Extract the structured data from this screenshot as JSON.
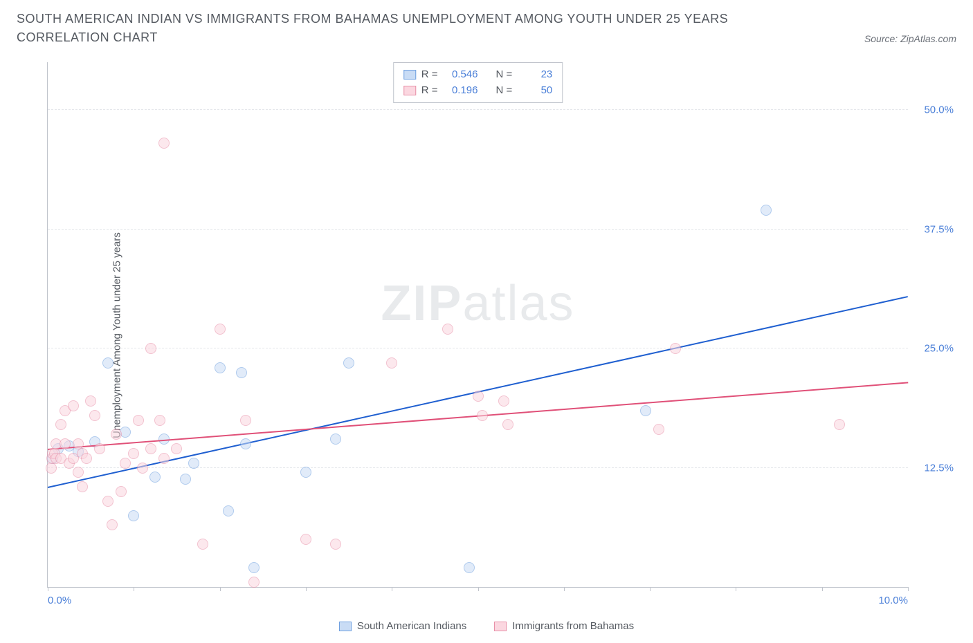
{
  "title": "SOUTH AMERICAN INDIAN VS IMMIGRANTS FROM BAHAMAS UNEMPLOYMENT AMONG YOUTH UNDER 25 YEARS CORRELATION CHART",
  "source_label": "Source: ZipAtlas.com",
  "y_axis_label": "Unemployment Among Youth under 25 years",
  "watermark_bold": "ZIP",
  "watermark_light": "atlas",
  "chart": {
    "type": "scatter",
    "xlim": [
      0,
      10
    ],
    "ylim": [
      0,
      55
    ],
    "x_ticks": [
      0,
      1,
      2,
      3,
      4,
      5,
      6,
      7,
      8,
      9,
      10
    ],
    "x_tick_labels": {
      "0": "0.0%",
      "10": "10.0%"
    },
    "y_ticks": [
      12.5,
      25.0,
      37.5,
      50.0
    ],
    "y_tick_labels": [
      "12.5%",
      "25.0%",
      "37.5%",
      "50.0%"
    ],
    "grid_color": "#e4e6ea",
    "axis_color": "#c0c4cc",
    "tick_label_color": "#4a7fd8",
    "background_color": "#ffffff",
    "marker_size": 16,
    "marker_opacity": 0.55,
    "series": [
      {
        "name": "South American Indians",
        "color_fill": "#c9dcf5",
        "color_stroke": "#6fa0e0",
        "trend_color": "#1f5fd0",
        "trend": {
          "x1": 0,
          "y1": 10.5,
          "x2": 10,
          "y2": 30.5
        },
        "stats": {
          "R": "0.546",
          "N": "23"
        },
        "points": [
          [
            0.06,
            13.5
          ],
          [
            0.12,
            14.5
          ],
          [
            0.25,
            14.8
          ],
          [
            0.35,
            14.2
          ],
          [
            0.55,
            15.2
          ],
          [
            0.7,
            23.5
          ],
          [
            0.9,
            16.2
          ],
          [
            1.0,
            7.5
          ],
          [
            1.25,
            11.5
          ],
          [
            1.35,
            15.5
          ],
          [
            1.6,
            11.3
          ],
          [
            1.7,
            13.0
          ],
          [
            2.0,
            23.0
          ],
          [
            2.1,
            8.0
          ],
          [
            2.25,
            22.5
          ],
          [
            2.3,
            15.0
          ],
          [
            2.4,
            2.0
          ],
          [
            3.0,
            12.0
          ],
          [
            3.35,
            15.5
          ],
          [
            3.5,
            23.5
          ],
          [
            4.9,
            2.0
          ],
          [
            6.95,
            18.5
          ],
          [
            8.35,
            39.5
          ]
        ]
      },
      {
        "name": "Immigrants from Bahamas",
        "color_fill": "#fbd7e0",
        "color_stroke": "#e890a8",
        "trend_color": "#e05078",
        "trend": {
          "x1": 0,
          "y1": 14.5,
          "x2": 10,
          "y2": 21.5
        },
        "stats": {
          "R": "0.196",
          "N": "50"
        },
        "points": [
          [
            0.04,
            12.5
          ],
          [
            0.05,
            13.5
          ],
          [
            0.06,
            14.0
          ],
          [
            0.08,
            14.0
          ],
          [
            0.1,
            15.0
          ],
          [
            0.1,
            13.5
          ],
          [
            0.15,
            13.5
          ],
          [
            0.15,
            17.0
          ],
          [
            0.2,
            15.0
          ],
          [
            0.2,
            18.5
          ],
          [
            0.25,
            13.0
          ],
          [
            0.3,
            19.0
          ],
          [
            0.3,
            13.5
          ],
          [
            0.35,
            12.0
          ],
          [
            0.35,
            15.0
          ],
          [
            0.4,
            10.5
          ],
          [
            0.4,
            14.0
          ],
          [
            0.45,
            13.5
          ],
          [
            0.5,
            19.5
          ],
          [
            0.55,
            18.0
          ],
          [
            0.6,
            14.5
          ],
          [
            0.7,
            9.0
          ],
          [
            0.75,
            6.5
          ],
          [
            0.8,
            16.0
          ],
          [
            0.85,
            10.0
          ],
          [
            0.9,
            13.0
          ],
          [
            1.0,
            14.0
          ],
          [
            1.05,
            17.5
          ],
          [
            1.1,
            12.5
          ],
          [
            1.2,
            14.5
          ],
          [
            1.2,
            25.0
          ],
          [
            1.3,
            17.5
          ],
          [
            1.35,
            13.5
          ],
          [
            1.35,
            46.5
          ],
          [
            1.5,
            14.5
          ],
          [
            1.8,
            4.5
          ],
          [
            2.0,
            27.0
          ],
          [
            2.3,
            17.5
          ],
          [
            2.4,
            0.5
          ],
          [
            3.0,
            5.0
          ],
          [
            3.35,
            4.5
          ],
          [
            4.0,
            23.5
          ],
          [
            4.65,
            27.0
          ],
          [
            5.0,
            20.0
          ],
          [
            5.05,
            18.0
          ],
          [
            5.3,
            19.5
          ],
          [
            5.35,
            17.0
          ],
          [
            7.1,
            16.5
          ],
          [
            7.3,
            25.0
          ],
          [
            9.2,
            17.0
          ]
        ]
      }
    ]
  },
  "stats_box": {
    "r_label": "R =",
    "n_label": "N ="
  },
  "bottom_legend": {
    "items": [
      "South American Indians",
      "Immigrants from Bahamas"
    ]
  }
}
